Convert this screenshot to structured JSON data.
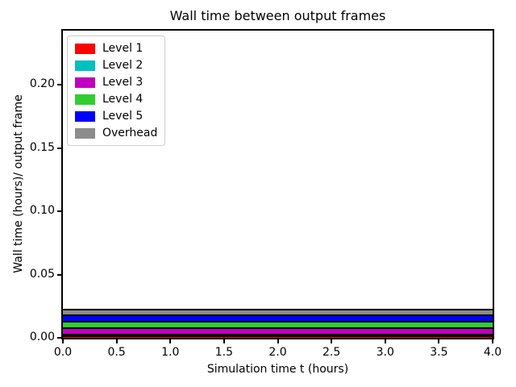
{
  "chart_data": {
    "type": "area",
    "stacked": true,
    "title": "Wall time between output frames",
    "xlabel": "Simulation time t (hours)",
    "ylabel": "Wall time (hours)/ output frame",
    "xlim": [
      0.0,
      4.0
    ],
    "ylim": [
      0.0,
      0.243
    ],
    "x": [
      0.0,
      4.0
    ],
    "series": [
      {
        "name": "Level 1",
        "color": "#ff0000",
        "values": [
          0.0015,
          0.0015
        ]
      },
      {
        "name": "Level 2",
        "color": "#00bfbf",
        "values": [
          0.0013,
          0.0013
        ]
      },
      {
        "name": "Level 3",
        "color": "#bf00bf",
        "values": [
          0.0049,
          0.0049
        ]
      },
      {
        "name": "Level 4",
        "color": "#32cd32",
        "values": [
          0.0052,
          0.0052
        ]
      },
      {
        "name": "Level 5",
        "color": "#0000ff",
        "values": [
          0.0052,
          0.0052
        ]
      },
      {
        "name": "Overhead",
        "color": "#8c8c8c",
        "values": [
          0.0044,
          0.0044
        ]
      }
    ],
    "xticks": {
      "values": [
        0.0,
        0.5,
        1.0,
        1.5,
        2.0,
        2.5,
        3.0,
        3.5,
        4.0
      ],
      "labels": [
        "0.0",
        "0.5",
        "1.0",
        "1.5",
        "2.0",
        "2.5",
        "3.0",
        "3.5",
        "4.0"
      ]
    },
    "yticks": {
      "values": [
        0.0,
        0.05,
        0.1,
        0.15,
        0.2
      ],
      "labels": [
        "0.00",
        "0.05",
        "0.10",
        "0.15",
        "0.20"
      ]
    },
    "legend_position": "upper left",
    "edge_color": "#000000",
    "grid": false,
    "background": "#ffffff"
  }
}
